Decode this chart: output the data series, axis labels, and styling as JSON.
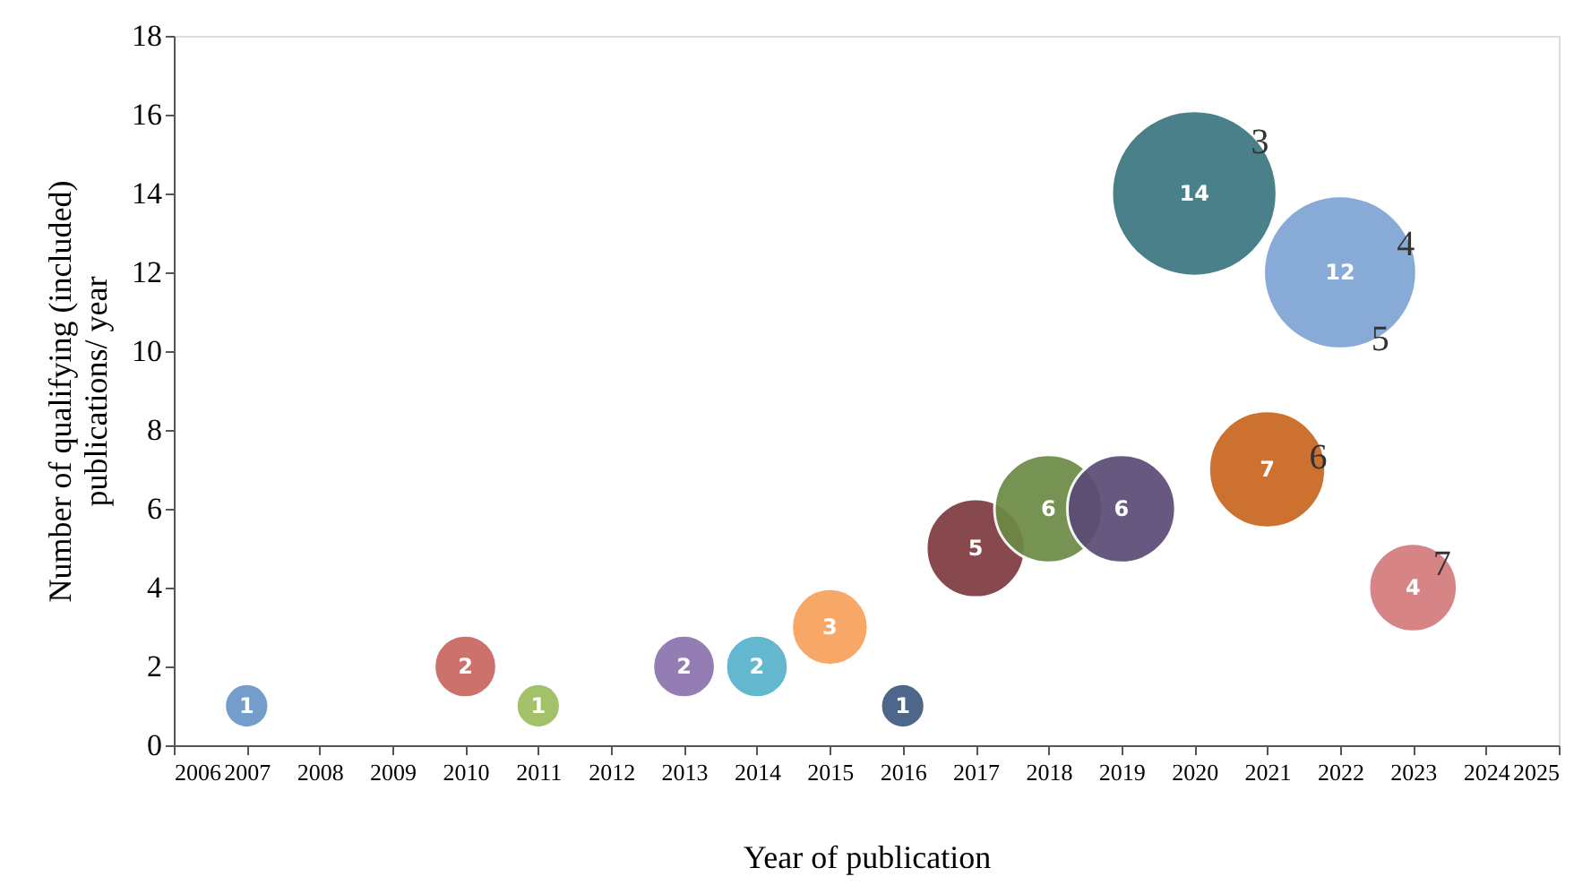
{
  "chart_data": {
    "type": "bubble",
    "xlabel": "Year of publication",
    "ylabel": "Number of qualifying (included)\npublications/ year",
    "x": [
      2007,
      2010,
      2011,
      2013,
      2014,
      2015,
      2016,
      2017,
      2018,
      2019,
      2020,
      2021,
      2022,
      2023
    ],
    "values": [
      1,
      2,
      1,
      2,
      2,
      3,
      1,
      5,
      6,
      6,
      14,
      7,
      12,
      4
    ],
    "sizes": [
      0.0714,
      0.1429,
      0.0714,
      0.1429,
      0.1429,
      0.2143,
      0.0714,
      0.3571,
      0.4286,
      0.4286,
      1,
      0.5,
      0.8571,
      0.2857
    ],
    "colors": [
      "#6a95c8",
      "#c96560",
      "#9cbc5c",
      "#8c73ad",
      "#56b3cc",
      "#f7a05a",
      "#3e5a80",
      "#7e3a40",
      "#6b8a45",
      "#5a4a75",
      "#3b7681",
      "#c8661e",
      "#7ea3d4",
      "#d47a7d"
    ],
    "data_labels": true,
    "xlim": [
      2006,
      2025
    ],
    "xticks": [
      2006,
      2007,
      2008,
      2009,
      2010,
      2011,
      2012,
      2013,
      2014,
      2015,
      2016,
      2017,
      2018,
      2019,
      2020,
      2021,
      2022,
      2023,
      2024,
      2025
    ],
    "ylim": [
      0,
      18
    ],
    "yticks": [
      0,
      2,
      4,
      6,
      8,
      10,
      12,
      14,
      16,
      18
    ],
    "grid": false,
    "annotations": [
      {
        "text": "3",
        "x": 2020.9,
        "y": 15.3
      },
      {
        "text": "4",
        "x": 2022.9,
        "y": 12.7
      },
      {
        "text": "5",
        "x": 2022.55,
        "y": 10.3
      },
      {
        "text": "6",
        "x": 2021.7,
        "y": 7.3
      },
      {
        "text": "7",
        "x": 2023.4,
        "y": 4.6
      }
    ]
  }
}
